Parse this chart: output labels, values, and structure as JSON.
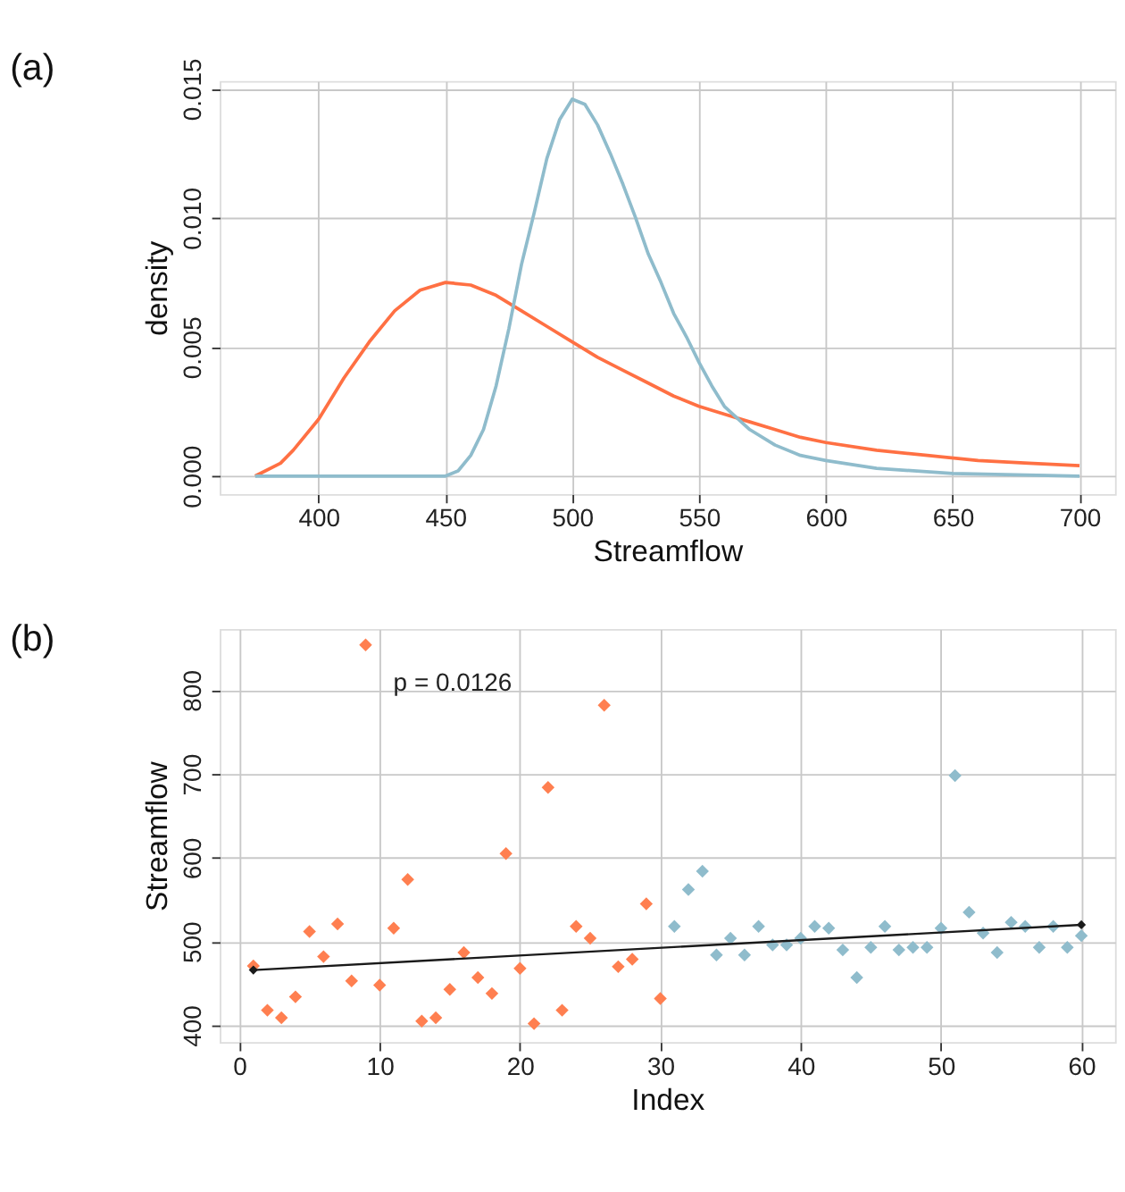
{
  "chart_data": [
    {
      "type": "line",
      "title": "(a)",
      "xlabel": "Streamflow",
      "ylabel": "density",
      "xlim": [
        361,
        714
      ],
      "ylim": [
        -0.0007,
        0.0153
      ],
      "xticks": [
        400,
        450,
        500,
        550,
        600,
        650,
        700
      ],
      "yticks": [
        {
          "value": 0,
          "label": "0.000"
        },
        {
          "value": 0.005,
          "label": "0.005"
        },
        {
          "value": 0.01,
          "label": "0.010"
        },
        {
          "value": 0.015,
          "label": "0.015"
        }
      ],
      "grid": true,
      "marker": "none",
      "line_style": "solid",
      "series": [
        {
          "color": "#ff7043",
          "x": [
            375,
            385,
            390,
            400,
            410,
            420,
            430,
            440,
            450,
            460,
            470,
            480,
            490,
            500,
            510,
            520,
            530,
            540,
            550,
            560,
            570,
            580,
            590,
            600,
            620,
            640,
            660,
            680,
            700
          ],
          "values": [
            0,
            0.0005,
            0.001,
            0.0022,
            0.0038,
            0.0052,
            0.0064,
            0.0072,
            0.0075,
            0.0074,
            0.007,
            0.0064,
            0.0058,
            0.0052,
            0.0046,
            0.0041,
            0.0036,
            0.0031,
            0.0027,
            0.0024,
            0.0021,
            0.0018,
            0.0015,
            0.0013,
            0.001,
            0.0008,
            0.0006,
            0.0005,
            0.0004
          ]
        },
        {
          "color": "#8fbccc",
          "x": [
            375,
            450,
            455,
            460,
            465,
            470,
            475,
            480,
            485,
            490,
            495,
            500,
            505,
            510,
            515,
            520,
            525,
            530,
            535,
            540,
            545,
            550,
            555,
            560,
            570,
            580,
            590,
            600,
            620,
            650,
            700
          ],
          "values": [
            0,
            0,
            0.0002,
            0.0008,
            0.0018,
            0.0035,
            0.0057,
            0.0082,
            0.0102,
            0.0123,
            0.0138,
            0.0146,
            0.0144,
            0.0136,
            0.0125,
            0.0113,
            0.01,
            0.0086,
            0.0075,
            0.0063,
            0.0054,
            0.0044,
            0.0035,
            0.0027,
            0.0018,
            0.0012,
            0.0008,
            0.0006,
            0.0003,
            0.0001,
            0
          ]
        }
      ]
    },
    {
      "type": "scatter",
      "title": "(b)",
      "xlabel": "Index",
      "ylabel": "Streamflow",
      "xlim": [
        -1.4,
        62.4
      ],
      "ylim": [
        380,
        873
      ],
      "xticks": [
        0,
        10,
        20,
        30,
        40,
        50,
        60
      ],
      "yticks": [
        400,
        500,
        600,
        700,
        800
      ],
      "grid": true,
      "marker": "diamond",
      "annotations": [
        "p = 0.0126"
      ],
      "series": [
        {
          "color": "#ff7f50",
          "x": [
            1,
            2,
            3,
            4,
            5,
            6,
            7,
            8,
            9,
            10,
            11,
            12,
            13,
            14,
            15,
            16,
            17,
            18,
            19,
            20,
            21,
            22,
            23,
            24,
            25,
            26,
            27,
            28,
            29,
            30
          ],
          "values": [
            471,
            418,
            409,
            434,
            512,
            482,
            521,
            453,
            854,
            448,
            516,
            574,
            405,
            409,
            443,
            487,
            457,
            438,
            605,
            468,
            402,
            684,
            418,
            518,
            504,
            782,
            470,
            479,
            545,
            432
          ]
        },
        {
          "color": "#8fbccc",
          "x": [
            31,
            32,
            33,
            34,
            35,
            36,
            37,
            38,
            39,
            40,
            41,
            42,
            43,
            44,
            45,
            46,
            47,
            48,
            49,
            50,
            51,
            52,
            53,
            54,
            55,
            56,
            57,
            58,
            59,
            60
          ],
          "values": [
            518,
            562,
            584,
            484,
            504,
            484,
            518,
            496,
            496,
            504,
            518,
            516,
            490,
            457,
            493,
            518,
            490,
            493,
            493,
            516,
            698,
            535,
            510,
            487,
            523,
            518,
            493,
            518,
            493,
            507
          ]
        },
        {
          "type": "line",
          "color": "#1a1a1a",
          "x": [
            1,
            60
          ],
          "values": [
            466,
            520
          ]
        }
      ]
    }
  ]
}
